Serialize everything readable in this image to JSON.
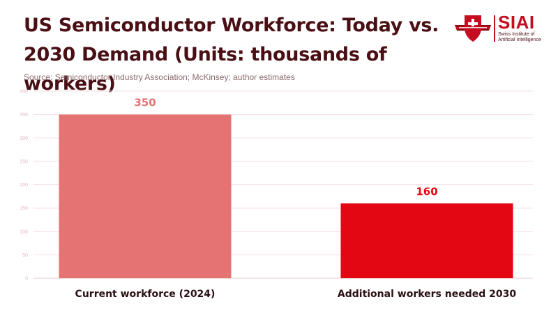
{
  "header": {
    "title": "US Semiconductor Workforce: Today vs. 2030 Demand (Units: thousands of workers)",
    "source": "Source: Semiconductor Industry Association; McKinsey; author estimates"
  },
  "logo": {
    "acronym": "SIAI",
    "subtitle_line1": "Swiss Institute of",
    "subtitle_line2": "Artificial Intelligence"
  },
  "colors": {
    "title": "#4a0f14",
    "bar_current": "#e57373",
    "bar_additional": "#e30613",
    "grid": "#f6dfe1",
    "brand": "#c40d1e"
  },
  "chart_data": {
    "type": "bar",
    "categories": [
      "Current workforce (2024)",
      "Additional workers needed 2030"
    ],
    "values": [
      350,
      160
    ],
    "data_labels": [
      "350",
      "160"
    ],
    "title": "US Semiconductor Workforce: Today vs. 2030 Demand (Units: thousands of workers)",
    "xlabel": "",
    "ylabel": "",
    "ylim": [
      0,
      400
    ],
    "yticks": [
      0,
      50,
      100,
      150,
      200,
      250,
      300,
      350,
      400
    ],
    "grid": true,
    "legend": "none"
  }
}
